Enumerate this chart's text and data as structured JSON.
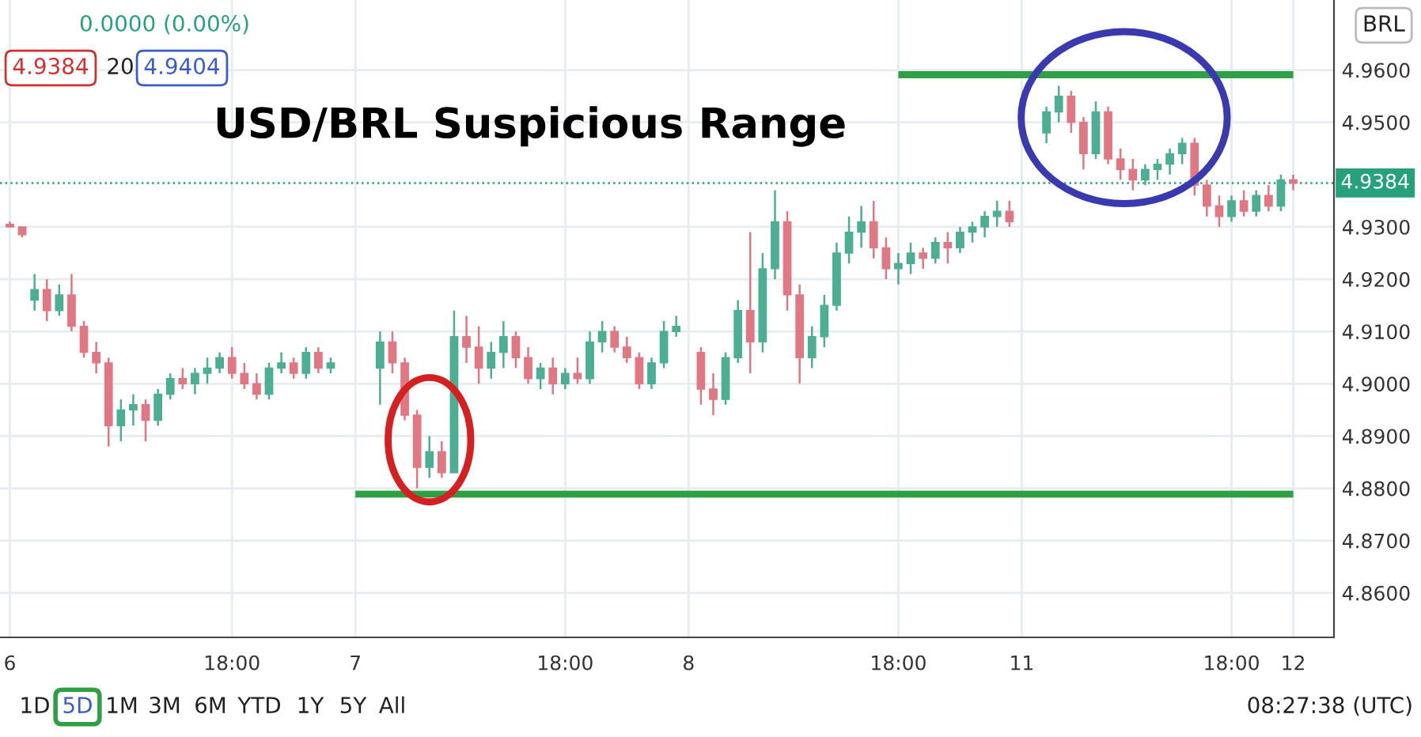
{
  "chart_data": {
    "type": "candlestick",
    "title": "USD/BRL Suspicious Range",
    "categories": [
      "6",
      null,
      null,
      null,
      null,
      null,
      null,
      null,
      null,
      null,
      null,
      null,
      null,
      null,
      null,
      null,
      null,
      null,
      "18:00",
      null,
      null,
      null,
      null,
      null,
      null,
      null,
      null,
      null,
      "7",
      null,
      null,
      null,
      null,
      null,
      null,
      null,
      null,
      null,
      null,
      null,
      null,
      null,
      null,
      null,
      null,
      "18:00",
      null,
      null,
      null,
      null,
      null,
      null,
      null,
      null,
      null,
      "8",
      null,
      null,
      null,
      null,
      null,
      null,
      null,
      null,
      null,
      null,
      null,
      null,
      null,
      null,
      null,
      null,
      "18:00",
      null,
      null,
      null,
      null,
      null,
      null,
      null,
      null,
      null,
      "11",
      null,
      null,
      null,
      null,
      null,
      null,
      null,
      null,
      null,
      null,
      null,
      null,
      null,
      null,
      null,
      null,
      "18:00",
      null,
      null,
      null,
      null,
      "12"
    ],
    "ohlc": [
      [
        4.9305,
        4.931,
        4.93,
        4.93
      ],
      [
        4.93,
        4.93,
        4.928,
        4.9285
      ],
      [
        4.916,
        4.921,
        4.914,
        4.918
      ],
      [
        4.918,
        4.92,
        4.912,
        4.914
      ],
      [
        4.914,
        4.919,
        4.913,
        4.917
      ],
      [
        4.917,
        4.921,
        4.91,
        4.911
      ],
      [
        4.911,
        4.912,
        4.905,
        4.906
      ],
      [
        4.906,
        4.908,
        4.902,
        4.904
      ],
      [
        4.904,
        4.905,
        4.888,
        4.892
      ],
      [
        4.892,
        4.897,
        4.889,
        4.895
      ],
      [
        4.895,
        4.898,
        4.892,
        4.896
      ],
      [
        4.896,
        4.897,
        4.889,
        4.893
      ],
      [
        4.893,
        4.899,
        4.892,
        4.898
      ],
      [
        4.898,
        4.902,
        4.897,
        4.901
      ],
      [
        4.901,
        4.903,
        4.899,
        4.9
      ],
      [
        4.9,
        4.903,
        4.898,
        4.902
      ],
      [
        4.902,
        4.905,
        4.9,
        4.903
      ],
      [
        4.903,
        4.906,
        4.902,
        4.905
      ],
      [
        4.905,
        4.907,
        4.901,
        4.902
      ],
      [
        4.902,
        4.904,
        4.899,
        4.9
      ],
      [
        4.9,
        4.902,
        4.897,
        4.898
      ],
      [
        4.898,
        4.904,
        4.897,
        4.903
      ],
      [
        4.903,
        4.906,
        4.902,
        4.904
      ],
      [
        4.904,
        4.905,
        4.901,
        4.902
      ],
      [
        4.902,
        4.907,
        4.901,
        4.906
      ],
      [
        4.906,
        4.907,
        4.902,
        4.903
      ],
      [
        4.903,
        4.905,
        4.902,
        4.904
      ],
      null,
      null,
      null,
      [
        4.903,
        4.91,
        4.896,
        4.908
      ],
      [
        4.908,
        4.91,
        4.902,
        4.904
      ],
      [
        4.904,
        4.905,
        4.893,
        4.894
      ],
      [
        4.894,
        4.895,
        4.88,
        4.884
      ],
      [
        4.884,
        4.89,
        4.882,
        4.887
      ],
      [
        4.887,
        4.889,
        4.882,
        4.883
      ],
      [
        4.883,
        4.914,
        4.883,
        4.909
      ],
      [
        4.909,
        4.913,
        4.904,
        4.907
      ],
      [
        4.907,
        4.911,
        4.9,
        4.903
      ],
      [
        4.903,
        4.908,
        4.901,
        4.906
      ],
      [
        4.906,
        4.912,
        4.903,
        4.909
      ],
      [
        4.909,
        4.91,
        4.903,
        4.905
      ],
      [
        4.905,
        4.907,
        4.9,
        4.901
      ],
      [
        4.901,
        4.904,
        4.899,
        4.903
      ],
      [
        4.903,
        4.905,
        4.898,
        4.9
      ],
      [
        4.9,
        4.903,
        4.899,
        4.902
      ],
      [
        4.902,
        4.905,
        4.9,
        4.901
      ],
      [
        4.901,
        4.91,
        4.9,
        4.908
      ],
      [
        4.908,
        4.912,
        4.906,
        4.91
      ],
      [
        4.91,
        4.911,
        4.906,
        4.907
      ],
      [
        4.907,
        4.909,
        4.904,
        4.905
      ],
      [
        4.905,
        4.906,
        4.899,
        4.9
      ],
      [
        4.9,
        4.905,
        4.899,
        4.904
      ],
      [
        4.904,
        4.912,
        4.903,
        4.91
      ],
      [
        4.91,
        4.913,
        4.909,
        4.911
      ],
      null,
      [
        4.906,
        4.907,
        4.896,
        4.899
      ],
      [
        4.899,
        4.902,
        4.894,
        4.897
      ],
      [
        4.897,
        4.906,
        4.896,
        4.905
      ],
      [
        4.905,
        4.916,
        4.904,
        4.914
      ],
      [
        4.914,
        4.929,
        4.902,
        4.908
      ],
      [
        4.908,
        4.925,
        4.906,
        4.922
      ],
      [
        4.922,
        4.937,
        4.92,
        4.931
      ],
      [
        4.931,
        4.933,
        4.914,
        4.917
      ],
      [
        4.917,
        4.919,
        4.9,
        4.905
      ],
      [
        4.905,
        4.911,
        4.903,
        4.909
      ],
      [
        4.909,
        4.917,
        4.907,
        4.915
      ],
      [
        4.915,
        4.927,
        4.914,
        4.925
      ],
      [
        4.925,
        4.932,
        4.923,
        4.929
      ],
      [
        4.929,
        4.934,
        4.926,
        4.931
      ],
      [
        4.931,
        4.935,
        4.924,
        4.926
      ],
      [
        4.926,
        4.928,
        4.92,
        4.922
      ],
      [
        4.922,
        4.925,
        4.919,
        4.923
      ],
      [
        4.923,
        4.927,
        4.921,
        4.925
      ],
      [
        4.925,
        4.926,
        4.922,
        4.924
      ],
      [
        4.924,
        4.928,
        4.923,
        4.927
      ],
      [
        4.927,
        4.929,
        4.923,
        4.926
      ],
      [
        4.926,
        4.93,
        4.925,
        4.929
      ],
      [
        4.929,
        4.931,
        4.927,
        4.93
      ],
      [
        4.93,
        4.933,
        4.928,
        4.932
      ],
      [
        4.932,
        4.935,
        4.93,
        4.933
      ],
      [
        4.933,
        4.935,
        4.93,
        4.931
      ],
      null,
      null,
      [
        4.948,
        4.953,
        4.946,
        4.952
      ],
      [
        4.952,
        4.957,
        4.95,
        4.955
      ],
      [
        4.955,
        4.956,
        4.948,
        4.95
      ],
      [
        4.95,
        4.951,
        4.941,
        4.944
      ],
      [
        4.944,
        4.954,
        4.943,
        4.952
      ],
      [
        4.952,
        4.953,
        4.942,
        4.943
      ],
      [
        4.943,
        4.945,
        4.939,
        4.941
      ],
      [
        4.941,
        4.943,
        4.937,
        4.939
      ],
      [
        4.939,
        4.942,
        4.938,
        4.941
      ],
      [
        4.941,
        4.943,
        4.939,
        4.942
      ],
      [
        4.942,
        4.945,
        4.94,
        4.944
      ],
      [
        4.944,
        4.947,
        4.942,
        4.946
      ],
      [
        4.946,
        4.947,
        4.936,
        4.938
      ],
      [
        4.938,
        4.939,
        4.932,
        4.934
      ],
      [
        4.934,
        4.936,
        4.93,
        4.932
      ],
      [
        4.932,
        4.936,
        4.931,
        4.935
      ],
      [
        4.935,
        4.937,
        4.932,
        4.933
      ],
      [
        4.933,
        4.937,
        4.932,
        4.936
      ],
      [
        4.936,
        4.938,
        4.933,
        4.934
      ],
      [
        4.934,
        4.94,
        4.933,
        4.939
      ],
      [
        4.939,
        4.94,
        4.937,
        4.9384
      ]
    ],
    "series": [
      {
        "type": "line",
        "values": [
          null,
          null,
          null,
          null,
          null,
          null,
          null,
          null,
          null,
          null,
          null,
          null,
          null,
          null,
          null,
          null,
          null,
          null,
          null,
          null,
          null,
          null,
          null,
          null,
          null,
          null,
          null,
          null,
          4.8789,
          4.8789,
          4.8789,
          4.8789,
          4.8789,
          4.8789,
          4.8789,
          4.8789,
          4.8789,
          4.8789,
          4.8789,
          4.8789,
          4.8789,
          4.8789,
          4.8789,
          4.8789,
          4.8789,
          4.8789,
          4.8789,
          4.8789,
          4.8789,
          4.8789,
          4.8789,
          4.8789,
          4.8789,
          4.8789,
          4.8789,
          4.8789,
          4.8789,
          4.8789,
          4.8789,
          4.8789,
          4.8789,
          4.8789,
          4.8789,
          4.8789,
          4.8789,
          4.8789,
          4.8789,
          4.8789,
          4.8789,
          4.8789,
          4.8789,
          4.8789,
          4.8789,
          4.8789,
          4.8789,
          4.8789,
          4.8789,
          4.8789,
          4.8789,
          4.8789,
          4.8789,
          4.8789,
          4.8789,
          4.8789,
          4.8789,
          4.8789,
          4.8789,
          4.8789,
          4.8789,
          4.8789,
          4.8789,
          4.8789,
          4.8789,
          4.8789,
          4.8789,
          4.8789,
          4.8789,
          4.8789,
          4.8789,
          4.8789,
          4.8789,
          4.8789,
          4.8789,
          4.8789,
          4.8789
        ],
        "color": "#2ea043"
      },
      {
        "type": "line",
        "values": [
          null,
          null,
          null,
          null,
          null,
          null,
          null,
          null,
          null,
          null,
          null,
          null,
          null,
          null,
          null,
          null,
          null,
          null,
          null,
          null,
          null,
          null,
          null,
          null,
          null,
          null,
          null,
          null,
          null,
          null,
          null,
          null,
          null,
          null,
          null,
          null,
          null,
          null,
          null,
          null,
          null,
          null,
          null,
          null,
          null,
          null,
          null,
          null,
          null,
          null,
          null,
          null,
          null,
          null,
          null,
          null,
          null,
          null,
          null,
          null,
          null,
          null,
          null,
          null,
          null,
          null,
          null,
          null,
          null,
          null,
          null,
          null,
          4.9591,
          4.9591,
          4.9591,
          4.9591,
          4.9591,
          4.9591,
          4.9591,
          4.9591,
          4.9591,
          4.9591,
          4.9591,
          4.9591,
          4.9591,
          4.9591,
          4.9591,
          4.9591,
          4.9591,
          4.9591,
          4.9591,
          4.9591,
          4.9591,
          4.9591,
          4.9591,
          4.9591,
          4.9591,
          4.9591,
          4.9591,
          4.9591,
          4.9591,
          4.9591,
          4.9591,
          4.9591,
          4.9591
        ],
        "color": "#2ea043"
      }
    ],
    "ref_lines": [
      {
        "axis": "y",
        "value": 4.9384,
        "label": "4.9384",
        "color": "#26a17b",
        "line_style": "dotted"
      }
    ],
    "ylim": [
      4.8515,
      4.9734
    ],
    "yticks": [
      {
        "value": 4.86,
        "label": "4.8600"
      },
      {
        "value": 4.87,
        "label": "4.8700"
      },
      {
        "value": 4.88,
        "label": "4.8800"
      },
      {
        "value": 4.89,
        "label": "4.8900"
      },
      {
        "value": 4.9,
        "label": "4.9000"
      },
      {
        "value": 4.91,
        "label": "4.9100"
      },
      {
        "value": 4.92,
        "label": "4.9200"
      },
      {
        "value": 4.93,
        "label": "4.9300"
      },
      {
        "value": 4.95,
        "label": "4.9500"
      },
      {
        "value": 4.96,
        "label": "4.9600"
      }
    ],
    "grid": true,
    "legend": false,
    "annotations": [
      "0.0000 (0.00%)",
      "4.9384",
      "20",
      "4.9404",
      "BRL",
      "1D",
      "5D",
      "1M",
      "3M",
      "6M",
      "YTD",
      "1Y",
      "5Y",
      "All",
      "08:27:38 (UTC)"
    ]
  }
}
